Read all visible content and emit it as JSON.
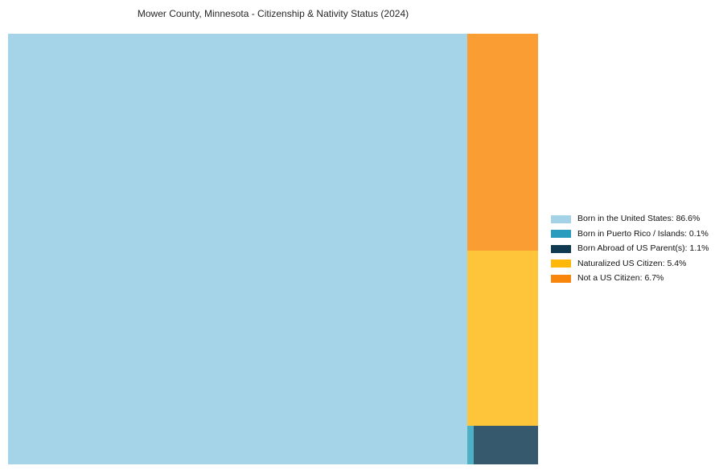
{
  "page": {
    "background_color": "#ffffff"
  },
  "chart_data": {
    "type": "treemap",
    "title": "Mower County, Minnesota - Citizenship & Nativity Status (2024)",
    "title_color": "#262626",
    "legend_position": "right",
    "unit": "%",
    "total": 99.9,
    "series": [
      {
        "name": "Born in the United States",
        "value": 86.6,
        "label": "Born in the United States: 86.6%",
        "color": "#A4D3E8",
        "tile_color": "#A5D3E8"
      },
      {
        "name": "Born in Puerto Rico / Islands",
        "value": 0.1,
        "label": "Born in Puerto Rico / Islands: 0.1%",
        "color": "#2A9DBE",
        "tile_color": "#4FAFC5"
      },
      {
        "name": "Born Abroad of US Parent(s)",
        "value": 1.1,
        "label": "Born Abroad of US Parent(s): 1.1%",
        "color": "#0F3A52",
        "tile_color": "#36596E"
      },
      {
        "name": "Naturalized US Citizen",
        "value": 5.4,
        "label": "Naturalized US Citizen: 5.4%",
        "color": "#FEB70B",
        "tile_color": "#FEC53A"
      },
      {
        "name": "Not a US Citizen",
        "value": 6.7,
        "label": "Not a US Citizen: 6.7%",
        "color": "#F8860D",
        "tile_color": "#FA9D33"
      }
    ]
  }
}
